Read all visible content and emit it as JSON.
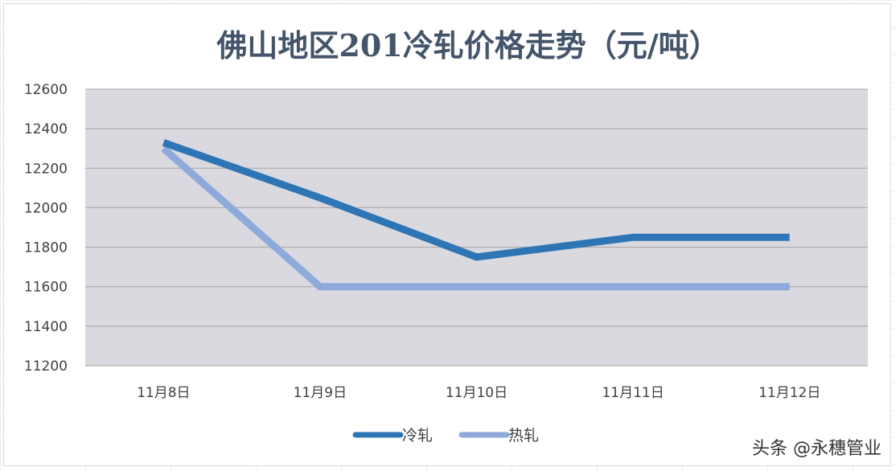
{
  "chart_data": {
    "type": "line",
    "title": "佛山地区201冷轧价格走势（元/吨）",
    "categories": [
      "11月8日",
      "11月9日",
      "11月10日",
      "11月11日",
      "11月12日"
    ],
    "ylim": [
      11200,
      12600
    ],
    "yticks": [
      11200,
      11400,
      11600,
      11800,
      12000,
      12200,
      12400,
      12600
    ],
    "grid": true,
    "legend_position": "bottom",
    "series": [
      {
        "name": "冷轧",
        "values": [
          12330,
          12050,
          11750,
          11850,
          11850
        ],
        "color": "#2e75b6"
      },
      {
        "name": "热轧",
        "values": [
          12300,
          11600,
          11600,
          11600,
          11600
        ],
        "color": "#8eaadb"
      }
    ],
    "plot_background": "#d9d9df"
  },
  "watermark": "头条 @永穗管业"
}
